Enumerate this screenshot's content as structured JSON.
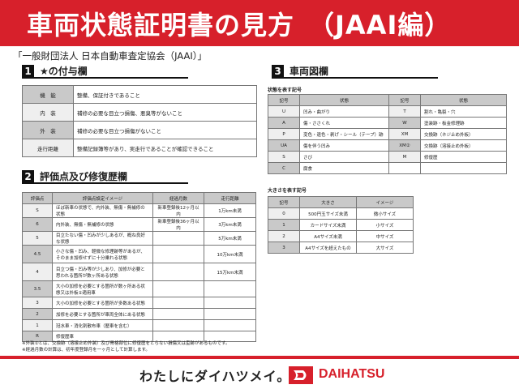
{
  "header": {
    "title": "車両状態証明書の見方　（JAAI編）"
  },
  "organization": "「一般財団法人 日本自動車査定協会（JAAI）」",
  "section1": {
    "num": "1",
    "title": "★の付与欄",
    "rows": [
      {
        "label": "機　能",
        "text": "整備、保証付きであること"
      },
      {
        "label": "内　装",
        "text": "補修の必要な目立つ損傷、悪臭等がないこと"
      },
      {
        "label": "外　装",
        "text": "補修の必要な目立つ損傷がないこと"
      },
      {
        "label": "走行距離",
        "text": "整備記録簿等があり、実走行であることが確認できること"
      }
    ]
  },
  "section2": {
    "num": "2",
    "title": "評価点及び修復歴欄",
    "headers": [
      "評価点",
      "評価点設定イメージ",
      "経過月数",
      "走行距離"
    ],
    "rows": [
      [
        "S",
        "ほぼ新車の状態で、内外装、無傷・無補修の状態",
        "新車登録後12ヶ月以内",
        "1万km未満"
      ],
      [
        "6",
        "内外装、無傷・無補修の状態",
        "新車登録後36ヶ月以内",
        "3万km未満"
      ],
      [
        "5",
        "目立たない傷・凹みが少しあるが、概ね良好な状態",
        "",
        "5万km未満"
      ],
      [
        "4.5",
        "小さな傷・凹み、軽微な修理跡等があるが、そのまま加修せずに十分乗れる状態",
        "",
        "10万km未満"
      ],
      [
        "4",
        "目立つ傷・凹み等が少しあり、加修が必要と思われる箇所が数ヶ所ある状態",
        "",
        "15万km未満"
      ],
      [
        "3.5",
        "大小の加修を必要とする箇所が数ヶ所ある状態又は外板②適用車",
        "",
        ""
      ],
      [
        "3",
        "大小の加修を必要とする箇所が多数ある状態",
        "",
        ""
      ],
      [
        "2",
        "加修を必要とする箇所が車両全体にある状態",
        "",
        ""
      ],
      [
        "1",
        "冠水車・消化剤散布車（歴車を含む）",
        "",
        ""
      ],
      [
        "R",
        "修復歴車",
        "",
        ""
      ]
    ]
  },
  "section3": {
    "num": "3",
    "title": "車両図欄",
    "state": {
      "title": "状態を表す記号",
      "headers": [
        "記号",
        "状態",
        "記号",
        "状態"
      ],
      "rows": [
        [
          "U",
          "凹み・曲がり",
          "T",
          "割れ・亀裂・穴"
        ],
        [
          "A",
          "傷・ささくれ",
          "W",
          "塗装跡・板金修理跡"
        ],
        [
          "P",
          "変色・退色・剥げ・シール（テープ）跡",
          "XM",
          "交換跡（ネジ止め外板）"
        ],
        [
          "UA",
          "傷を伴う凹み",
          "XM②",
          "交換跡（溶接止め外板）"
        ],
        [
          "S",
          "さび",
          "M",
          "修復歴"
        ],
        [
          "C",
          "腐食",
          "",
          ""
        ]
      ]
    },
    "size": {
      "title": "大きさを表す記号",
      "headers": [
        "記号",
        "大きさ",
        "イメージ"
      ],
      "rows": [
        [
          "0",
          "500円玉サイズ未満",
          "微小サイズ"
        ],
        [
          "1",
          "カードサイズ未満",
          "小サイズ"
        ],
        [
          "2",
          "A4サイズ未満",
          "中サイズ"
        ],
        [
          "3",
          "A4サイズを超えたもの",
          "大サイズ"
        ]
      ]
    }
  },
  "notes": [
    "※外装②とは、交換跡（溶接止め外装）及び骨格部位に修復歴をとらない損傷又は歪跡があるものです。",
    "※経過月数の計算は、初年度登録月を一ヶ月として計算します。"
  ],
  "footer": {
    "slogan": "わたしにダイハツメイ。",
    "brand": "DAIHATSU",
    "brand_color": "#d7202b"
  }
}
